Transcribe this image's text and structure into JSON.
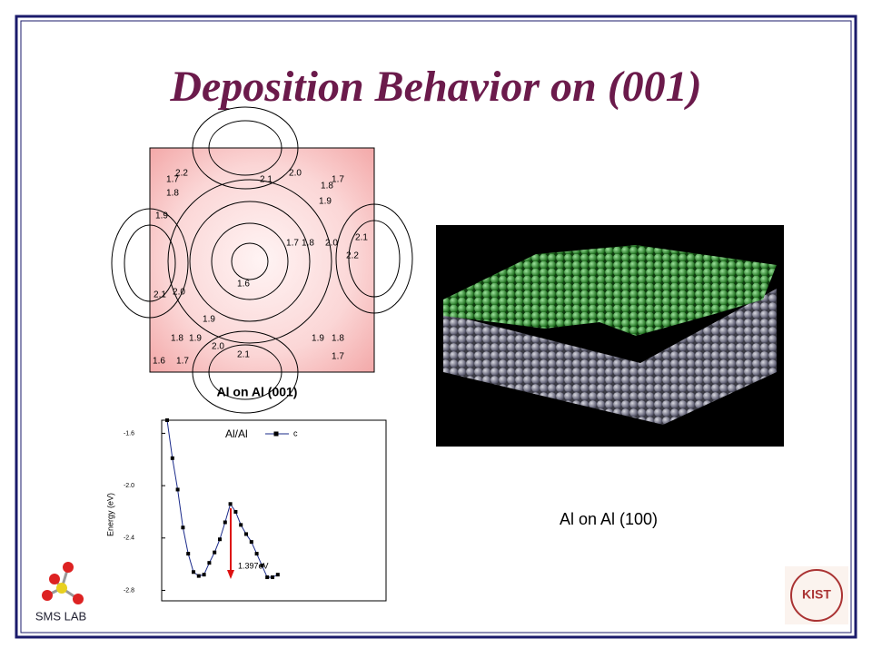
{
  "title": "Deposition Behavior on (001)",
  "contour": {
    "caption": "Al on Al (001)",
    "labels": [
      "2.2",
      "2.1",
      "2.0",
      "1.7",
      "1.8",
      "1.7",
      "1.8",
      "1.9",
      "1.9",
      "1.7",
      "1.8",
      "2.0",
      "2.1",
      "2.2",
      "1.6",
      "2.1",
      "2.0",
      "1.9",
      "1.8",
      "1.9",
      "2.0",
      "1.9",
      "1.8",
      "2.1",
      "1.7",
      "1.6",
      "1.7"
    ]
  },
  "energy_plot": {
    "type": "line",
    "ylabel": "Energy (eV)",
    "legend_title": "Al/Al",
    "series_name": "c",
    "annotation": "1.397eV",
    "color": "#1a2a8a",
    "ylim": [
      -2.88,
      -1.5
    ],
    "yticks": [
      -1.6,
      {
        "value": -2.0,
        "label": "-2.0"
      },
      -2.4,
      -2.8
    ],
    "values": [
      -1.5,
      -1.79,
      -2.03,
      -2.32,
      -2.52,
      -2.66,
      -2.69,
      -2.68,
      -2.59,
      -2.51,
      -2.41,
      -2.28,
      -2.14,
      -2.2,
      -2.3,
      -2.37,
      -2.43,
      -2.52,
      -2.61,
      -2.7,
      -2.7,
      -2.68
    ]
  },
  "render": {
    "caption": "Al on Al (100)"
  },
  "logo": {
    "text": "SMS LAB"
  },
  "badge": {
    "text": "KIST"
  }
}
